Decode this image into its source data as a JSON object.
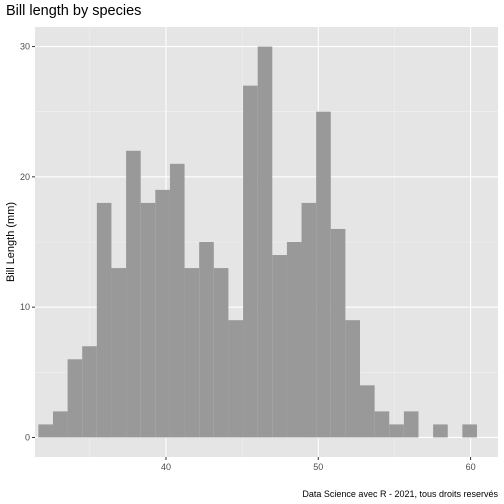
{
  "chart_data": {
    "type": "bar",
    "title": "Bill length by species",
    "xlabel": "",
    "ylabel": "Bill Length (mm)",
    "caption": "Data Science avec R - 2021, tous droits reservés",
    "x_ticks": [
      40,
      50,
      60
    ],
    "y_ticks": [
      0,
      10,
      20,
      30
    ],
    "xlim": [
      31.4,
      61.8
    ],
    "ylim": [
      -1.5,
      31.5
    ],
    "bin_width": 0.96,
    "bins": [
      {
        "x": 32.1,
        "count": 1
      },
      {
        "x": 33.06,
        "count": 2
      },
      {
        "x": 34.02,
        "count": 6
      },
      {
        "x": 34.98,
        "count": 7
      },
      {
        "x": 35.94,
        "count": 18
      },
      {
        "x": 36.9,
        "count": 13
      },
      {
        "x": 37.86,
        "count": 22
      },
      {
        "x": 38.82,
        "count": 18
      },
      {
        "x": 39.78,
        "count": 19
      },
      {
        "x": 40.74,
        "count": 21
      },
      {
        "x": 41.7,
        "count": 13
      },
      {
        "x": 42.66,
        "count": 15
      },
      {
        "x": 43.62,
        "count": 13
      },
      {
        "x": 44.58,
        "count": 9
      },
      {
        "x": 45.54,
        "count": 27
      },
      {
        "x": 46.5,
        "count": 30
      },
      {
        "x": 47.46,
        "count": 14
      },
      {
        "x": 48.42,
        "count": 15
      },
      {
        "x": 49.38,
        "count": 18
      },
      {
        "x": 50.34,
        "count": 25
      },
      {
        "x": 51.3,
        "count": 16
      },
      {
        "x": 52.26,
        "count": 9
      },
      {
        "x": 53.22,
        "count": 4
      },
      {
        "x": 54.18,
        "count": 2
      },
      {
        "x": 55.14,
        "count": 1
      },
      {
        "x": 56.1,
        "count": 2
      },
      {
        "x": 57.06,
        "count": 0
      },
      {
        "x": 58.02,
        "count": 1
      },
      {
        "x": 58.98,
        "count": 0
      },
      {
        "x": 59.94,
        "count": 1
      }
    ],
    "grid": true,
    "legend": "none",
    "colors": {
      "panel_background": "#E5E5E5",
      "grid_major": "#FFFFFF",
      "bar_fill": "#999999",
      "tick_text": "#4D4D4D"
    }
  }
}
